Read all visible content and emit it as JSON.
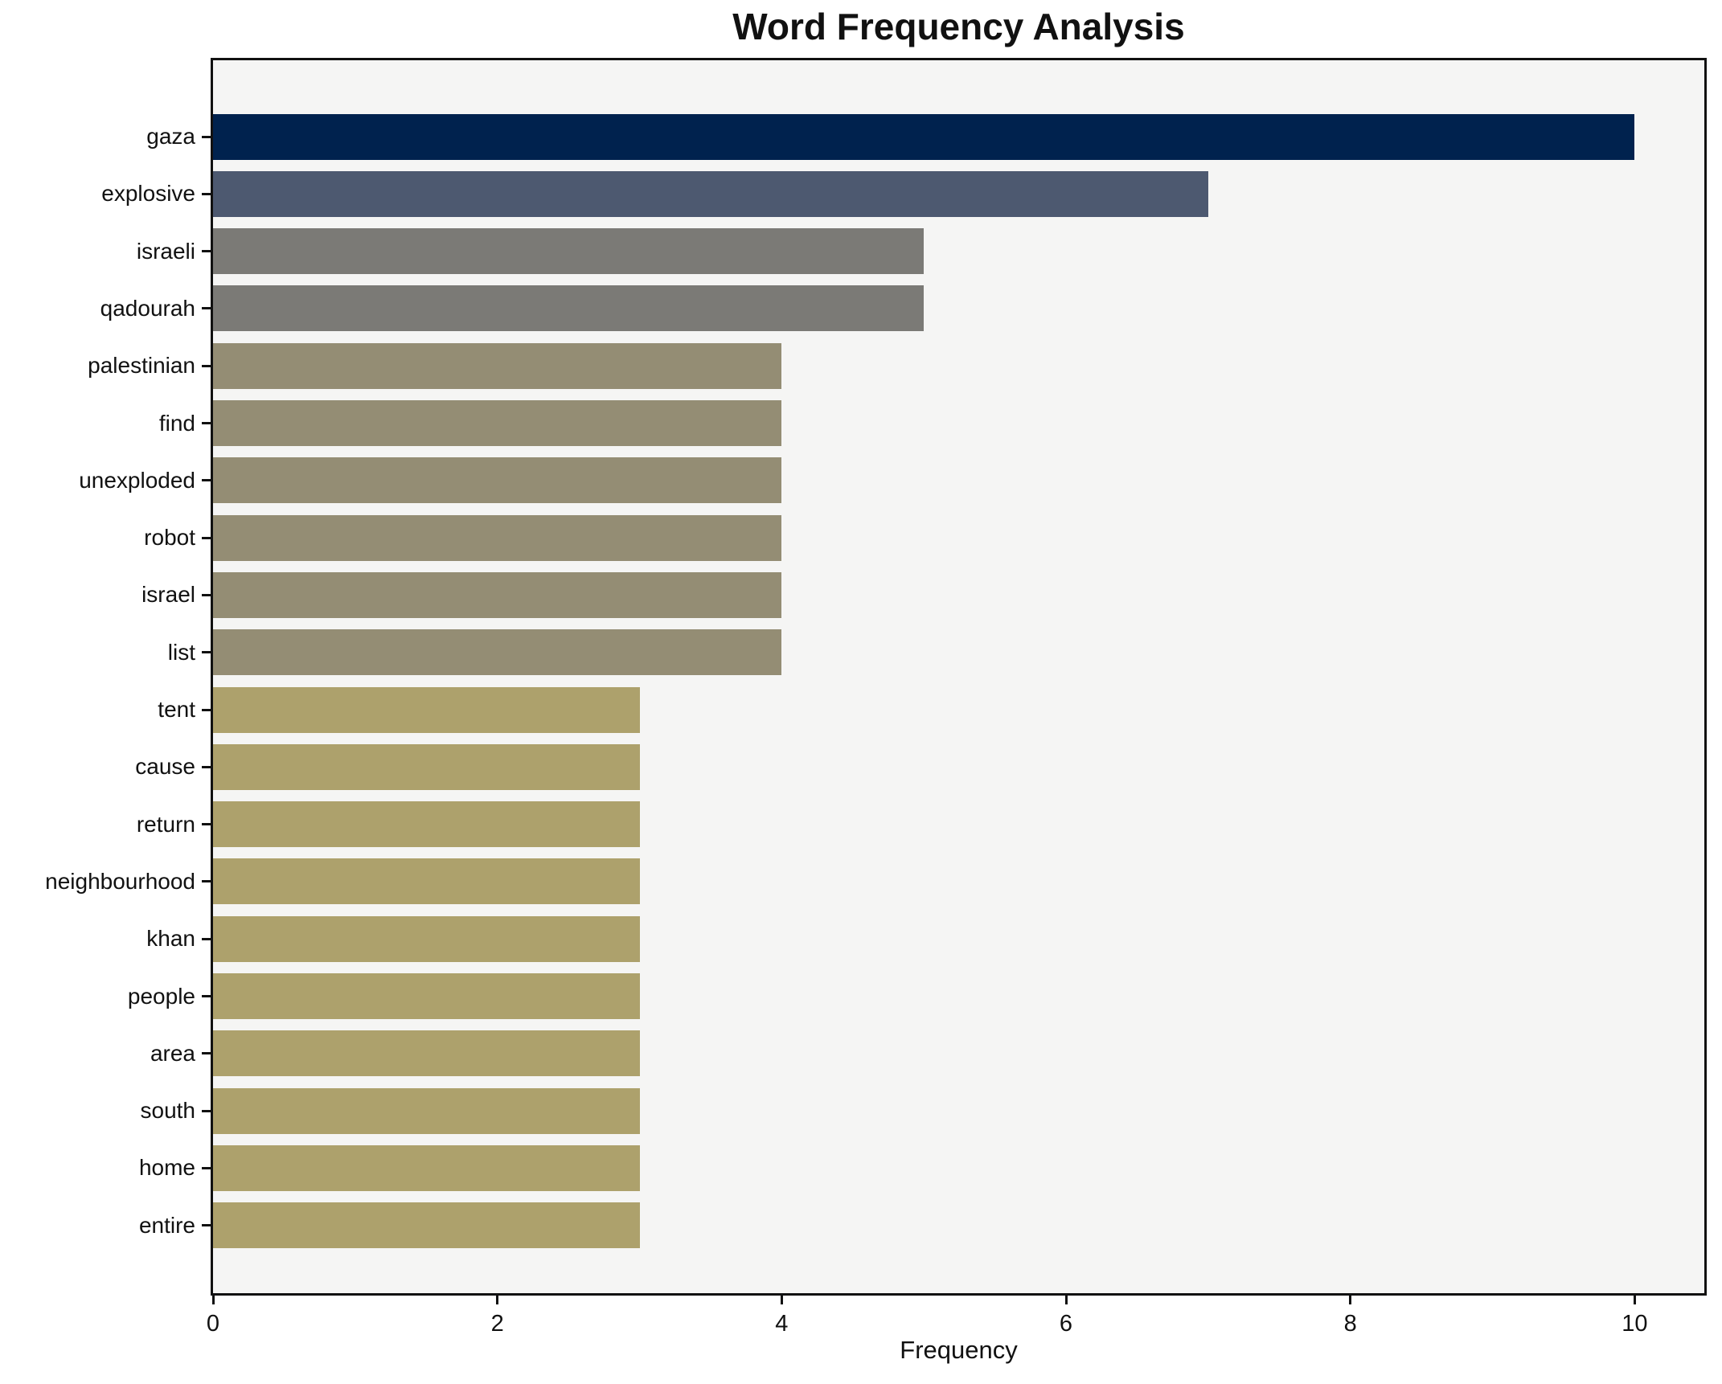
{
  "title": "Word Frequency Analysis",
  "chart_data": {
    "type": "bar",
    "orientation": "horizontal",
    "title": "Word Frequency Analysis",
    "xlabel": "Frequency",
    "ylabel": "",
    "categories": [
      "gaza",
      "explosive",
      "israeli",
      "qadourah",
      "palestinian",
      "find",
      "unexploded",
      "robot",
      "israel",
      "list",
      "tent",
      "cause",
      "return",
      "neighbourhood",
      "khan",
      "people",
      "area",
      "south",
      "home",
      "entire"
    ],
    "values": [
      10,
      7,
      5,
      5,
      4,
      4,
      4,
      4,
      4,
      4,
      3,
      3,
      3,
      3,
      3,
      3,
      3,
      3,
      3,
      3
    ],
    "bar_colors": [
      "#00224e",
      "#4d5970",
      "#7b7a76",
      "#7b7a76",
      "#948d74",
      "#948d74",
      "#948d74",
      "#948d74",
      "#948d74",
      "#948d74",
      "#ada16c",
      "#ada16c",
      "#ada16c",
      "#ada16c",
      "#ada16c",
      "#ada16c",
      "#ada16c",
      "#ada16c",
      "#ada16c",
      "#ada16c"
    ],
    "xticks": [
      0,
      2,
      4,
      6,
      8,
      10
    ],
    "xlim": [
      0,
      10.49
    ],
    "grid": false,
    "legend": false,
    "plot_background": "#f5f5f4",
    "figure_background": "#ffffff"
  }
}
